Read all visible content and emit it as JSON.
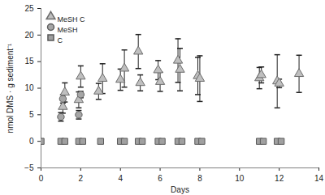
{
  "chart_data": {
    "type": "scatter",
    "x_label": "Days",
    "y_label": "nmol DMS · g sediment⁻¹",
    "xlim": [
      0,
      14
    ],
    "xticks": [
      0,
      2,
      4,
      6,
      8,
      10,
      12,
      14
    ],
    "ylim": [
      -5,
      25
    ],
    "yticks": [
      -5,
      0,
      5,
      10,
      15,
      20,
      25
    ],
    "grid": false,
    "legend": "top-left",
    "series": [
      {
        "name": "MeSH C",
        "marker": "triangle",
        "color": "#bfbfbf",
        "x": [
          1.1,
          1.2,
          1.9,
          2.0,
          2.9,
          3.1,
          4.0,
          4.2,
          4.9,
          5.0,
          5.9,
          6.0,
          6.9,
          7.0,
          7.9,
          8.0,
          11.0,
          11.1,
          11.9,
          12.0,
          13.0
        ],
        "values": [
          6.5,
          9.2,
          7.8,
          12.2,
          9.4,
          11.8,
          11.6,
          13.7,
          16.9,
          11.0,
          13.4,
          11.2,
          15.2,
          13.5,
          12.3,
          11.8,
          11.9,
          12.5,
          11.3,
          10.9,
          12.7
        ],
        "errors": [
          1.2,
          1.8,
          1.5,
          2.0,
          1.5,
          2.8,
          2.0,
          3.5,
          3.2,
          1.5,
          1.8,
          1.8,
          4.1,
          4.0,
          3.5,
          4.3,
          2.0,
          1.5,
          5.0,
          0.8,
          3.5
        ]
      },
      {
        "name": "MeSH",
        "marker": "circle",
        "color": "#a6a6a6",
        "x": [
          1.0,
          1.1,
          1.9,
          2.0
        ],
        "values": [
          4.6,
          8.0,
          5.0,
          8.8
        ],
        "errors": [
          0.8,
          0.8,
          0.8,
          0.6
        ]
      },
      {
        "name": "C",
        "marker": "square",
        "color": "#a0a0a0",
        "x": [
          0,
          1.0,
          1.2,
          1.9,
          2.1,
          3.0,
          4.0,
          4.2,
          4.9,
          5.1,
          5.9,
          6.1,
          6.9,
          7.1,
          7.9,
          8.1,
          11.0,
          11.2,
          11.9,
          12.1
        ],
        "values": [
          0,
          0,
          0,
          0,
          0,
          0,
          0,
          0,
          0,
          0,
          0,
          0,
          0,
          0,
          0,
          0,
          0,
          0,
          0,
          0
        ]
      }
    ]
  }
}
